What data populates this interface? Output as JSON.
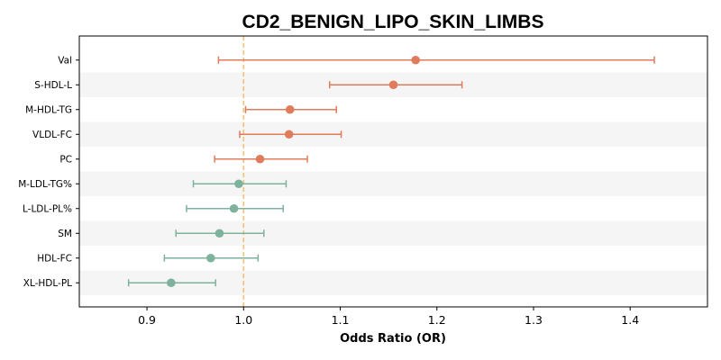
{
  "chart_data": {
    "type": "forest",
    "title": "CD2_BENIGN_LIPO_SKIN_LIMBS",
    "xlabel": "Odds Ratio (OR)",
    "ylabel": "",
    "xlim": [
      0.83,
      1.48
    ],
    "xticks": [
      "0.9",
      "1.0",
      "1.1",
      "1.2",
      "1.3",
      "1.4"
    ],
    "reference_line": 1.0,
    "grid": false,
    "colors": {
      "positive": "#e07b5c",
      "negative": "#7fb29c",
      "reference_line": "#f2c27b",
      "band": "#f5f5f5"
    },
    "rows": [
      {
        "label": "Val",
        "or": 1.178,
        "lo": 0.974,
        "hi": 1.425,
        "group": "positive"
      },
      {
        "label": "S-HDL-L",
        "or": 1.155,
        "lo": 1.089,
        "hi": 1.226,
        "group": "positive"
      },
      {
        "label": "M-HDL-TG",
        "or": 1.048,
        "lo": 1.002,
        "hi": 1.096,
        "group": "positive"
      },
      {
        "label": "VLDL-FC",
        "or": 1.047,
        "lo": 0.996,
        "hi": 1.101,
        "group": "positive"
      },
      {
        "label": "PC",
        "or": 1.017,
        "lo": 0.97,
        "hi": 1.066,
        "group": "positive"
      },
      {
        "label": "M-LDL-TG%",
        "or": 0.995,
        "lo": 0.948,
        "hi": 1.044,
        "group": "negative"
      },
      {
        "label": "L-LDL-PL%",
        "or": 0.99,
        "lo": 0.941,
        "hi": 1.041,
        "group": "negative"
      },
      {
        "label": "SM",
        "or": 0.975,
        "lo": 0.93,
        "hi": 1.021,
        "group": "negative"
      },
      {
        "label": "HDL-FC",
        "or": 0.966,
        "lo": 0.918,
        "hi": 1.015,
        "group": "negative"
      },
      {
        "label": "XL-HDL-PL",
        "or": 0.925,
        "lo": 0.881,
        "hi": 0.971,
        "group": "negative"
      }
    ]
  }
}
